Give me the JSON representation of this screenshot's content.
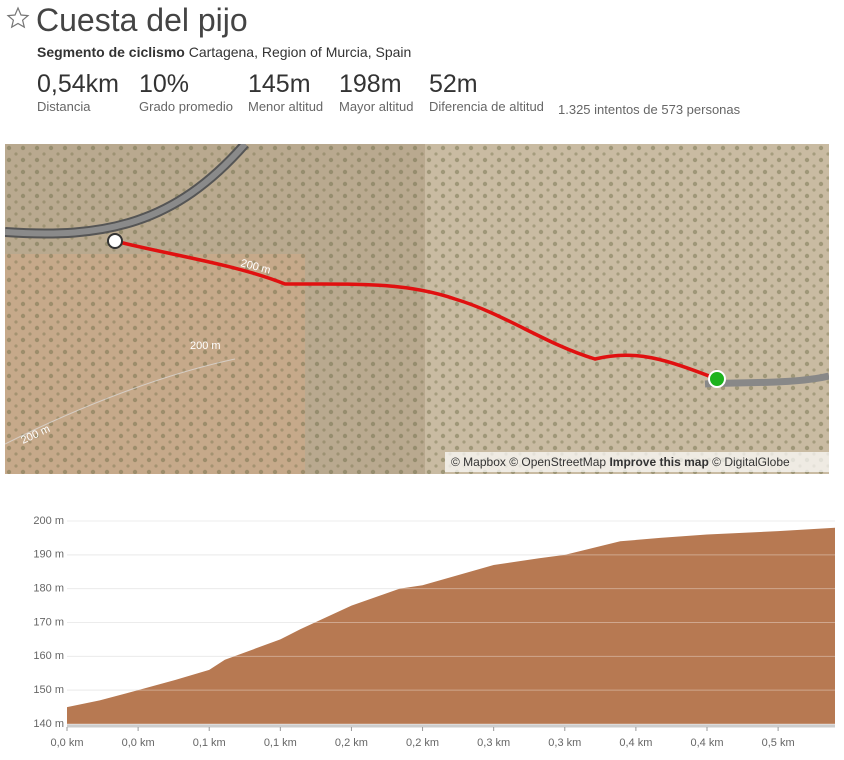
{
  "header": {
    "title": "Cuesta del pijo",
    "segment_type": "Segmento de ciclismo",
    "location": "Cartagena, Region of Murcia, Spain"
  },
  "stats": [
    {
      "value": "0,54km",
      "label": "Distancia"
    },
    {
      "value": "10%",
      "label": "Grado promedio"
    },
    {
      "value": "145m",
      "label": "Menor altitud"
    },
    {
      "value": "198m",
      "label": "Mayor altitud"
    },
    {
      "value": "52m",
      "label": "Diferencia de altitud"
    }
  ],
  "stats_note": "1.325 intentos de 573 personas",
  "map": {
    "contour_labels": [
      "200 m",
      "200 m",
      "200 m"
    ],
    "attribution": [
      "© Mapbox © OpenStreetMap",
      "Improve this map",
      "© DigitalGlobe"
    ]
  },
  "chart_data": {
    "type": "area",
    "color": "#b77952",
    "grid": true,
    "x": [
      0,
      0.023,
      0.05,
      0.076,
      0.1,
      0.111,
      0.15,
      0.164,
      0.2,
      0.234,
      0.25,
      0.3,
      0.332,
      0.35,
      0.389,
      0.417,
      0.45,
      0.5,
      0.54
    ],
    "values": [
      145,
      147,
      150,
      153,
      156,
      159,
      165,
      168,
      175,
      180,
      181,
      187,
      189,
      190,
      194,
      195,
      196,
      197,
      198
    ],
    "xlim": [
      0,
      0.54
    ],
    "ylim": [
      140,
      200
    ],
    "xticks": [
      {
        "value": 0,
        "label": "0,0 km"
      },
      {
        "value": 0.05,
        "label": "0,0 km"
      },
      {
        "value": 0.1,
        "label": "0,1 km"
      },
      {
        "value": 0.15,
        "label": "0,1 km"
      },
      {
        "value": 0.2,
        "label": "0,2 km"
      },
      {
        "value": 0.25,
        "label": "0,2 km"
      },
      {
        "value": 0.3,
        "label": "0,3 km"
      },
      {
        "value": 0.35,
        "label": "0,3 km"
      },
      {
        "value": 0.4,
        "label": "0,4 km"
      },
      {
        "value": 0.45,
        "label": "0,4 km"
      },
      {
        "value": 0.5,
        "label": "0,5 km"
      }
    ],
    "yticks": [
      {
        "value": 140,
        "label": "140 m"
      },
      {
        "value": 150,
        "label": "150 m"
      },
      {
        "value": 160,
        "label": "160 m"
      },
      {
        "value": 170,
        "label": "170 m"
      },
      {
        "value": 180,
        "label": "180 m"
      },
      {
        "value": 190,
        "label": "190 m"
      },
      {
        "value": 200,
        "label": "200 m"
      }
    ]
  }
}
